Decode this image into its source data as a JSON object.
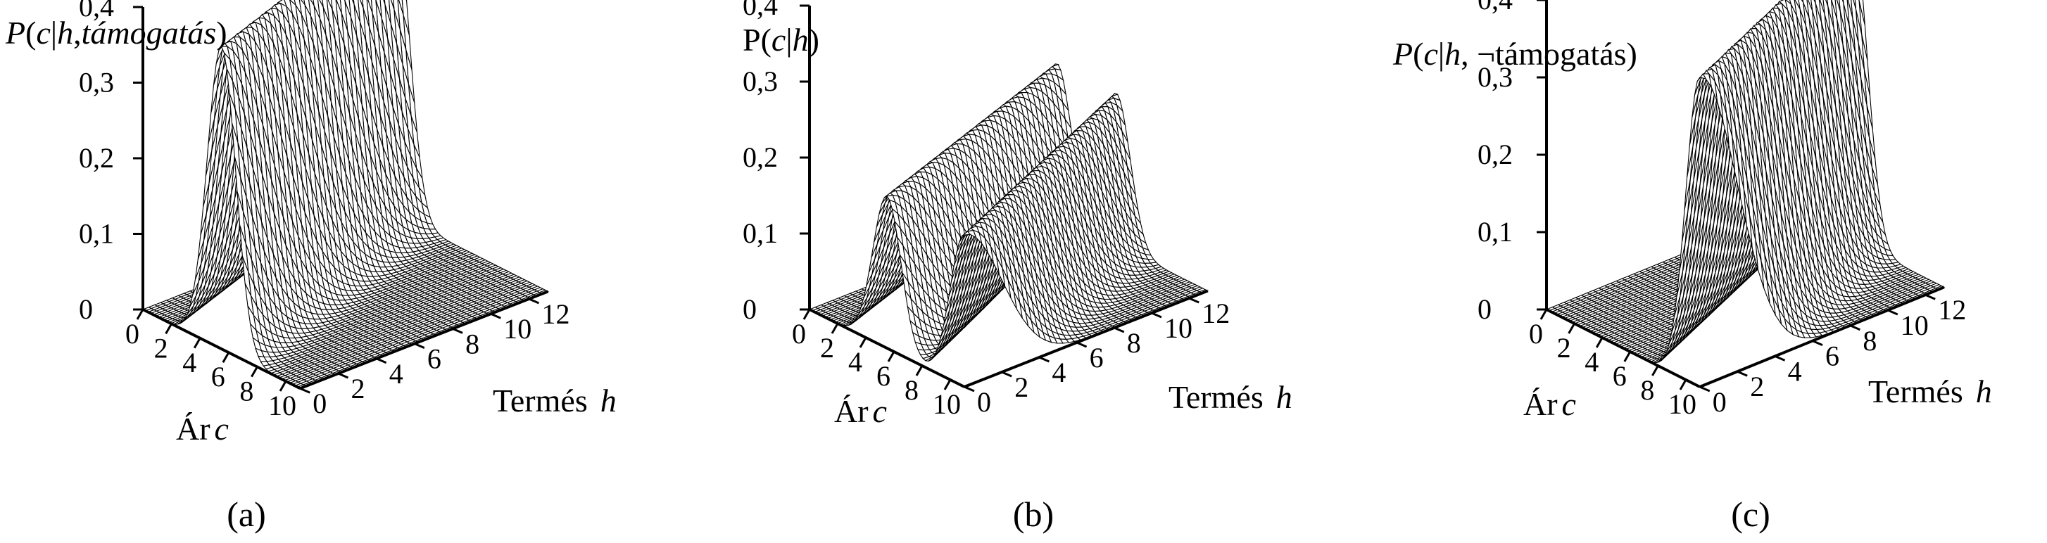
{
  "chart_data": [
    {
      "type": "surface3d",
      "panel_caption": "(a)",
      "title": {
        "prefix": "P",
        "open": "(",
        "var_c": "c",
        "bar": "|",
        "var_h": "h",
        "sep": ",",
        "cond": "támogatás",
        "close": ")"
      },
      "zlabel_ticks": [
        "0",
        "0,1",
        "0,2",
        "0,3",
        "0,4"
      ],
      "zlim": [
        0,
        0.4
      ],
      "x_axis": {
        "label_word": "Ár",
        "label_var": "c",
        "ticks": [
          "0",
          "2",
          "4",
          "6",
          "8",
          "10"
        ]
      },
      "y_axis": {
        "label_word": "Termés",
        "label_var": "h",
        "ticks": [
          "0",
          "2",
          "4",
          "6",
          "8",
          "10",
          "12"
        ]
      },
      "surface": [
        {
          "component": 1,
          "c_mean_at_h0": 5.5,
          "c_mean_slope": -0.4,
          "c_std": 1.0,
          "peak": 0.4
        }
      ]
    },
    {
      "type": "surface3d",
      "panel_caption": "(b)",
      "title": {
        "prefix": "P",
        "open": "(",
        "var_c": "c",
        "bar": "|",
        "var_h": "h",
        "sep": "",
        "cond": "",
        "close": ")"
      },
      "zlabel_ticks": [
        "0",
        "0,1",
        "0,2",
        "0,3",
        "0,4"
      ],
      "zlim": [
        0,
        0.4
      ],
      "x_axis": {
        "label_word": "Ár",
        "label_var": "c",
        "ticks": [
          "0",
          "2",
          "4",
          "6",
          "8",
          "10"
        ]
      },
      "y_axis": {
        "label_word": "Termés",
        "label_var": "h",
        "ticks": [
          "0",
          "2",
          "4",
          "6",
          "8",
          "10",
          "12"
        ]
      },
      "surface": [
        {
          "component": 1,
          "c_mean_at_h0": 5.5,
          "c_mean_slope": -0.4,
          "c_std": 1.0,
          "peak": 0.2
        },
        {
          "component": 2,
          "c_mean_at_h0": 11.0,
          "c_mean_slope": -0.5,
          "c_std": 1.0,
          "peak": 0.2
        }
      ]
    },
    {
      "type": "surface3d",
      "panel_caption": "(c)",
      "title": {
        "prefix": "P",
        "open": "(",
        "var_c": "c",
        "bar": "|",
        "var_h": "h",
        "sep": ", ",
        "cond": "¬támogatás",
        "close": ")"
      },
      "zlabel_ticks": [
        "0",
        "0,1",
        "0,2",
        "0,3",
        "0,4"
      ],
      "zlim": [
        0,
        0.4
      ],
      "x_axis": {
        "label_word": "Ár",
        "label_var": "c",
        "ticks": [
          "0",
          "2",
          "4",
          "6",
          "8",
          "10"
        ]
      },
      "y_axis": {
        "label_word": "Termés",
        "label_var": "h",
        "ticks": [
          "0",
          "2",
          "4",
          "6",
          "8",
          "10",
          "12"
        ]
      },
      "surface": [
        {
          "component": 1,
          "c_mean_at_h0": 11.0,
          "c_mean_slope": -0.5,
          "c_std": 1.0,
          "peak": 0.4
        }
      ]
    }
  ]
}
